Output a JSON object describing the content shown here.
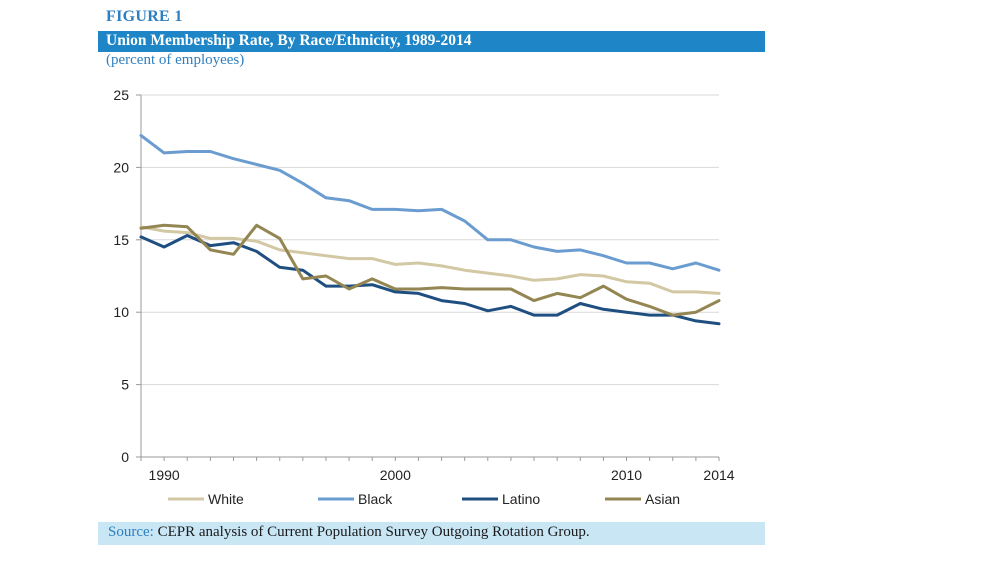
{
  "figure": {
    "label": "FIGURE 1",
    "title": "Union Membership Rate, By Race/Ethnicity, 1989-2014",
    "subtitle": "(percent of employees)",
    "source_prefix": "Source:",
    "source_text": " CEPR analysis of Current Population Survey Outgoing Rotation Group."
  },
  "chart_data": {
    "type": "line",
    "title": "Union Membership Rate, By Race/Ethnicity, 1989-2014",
    "xlabel": "",
    "ylabel": "",
    "ylim": [
      0,
      25
    ],
    "yticks": [
      0,
      5,
      10,
      15,
      20,
      25
    ],
    "xlim": [
      1989,
      2014
    ],
    "xticks": [
      1990,
      2000,
      2010,
      2014
    ],
    "grid": "horizontal",
    "legend": "bottom",
    "x": [
      1989,
      1990,
      1991,
      1992,
      1993,
      1994,
      1995,
      1996,
      1997,
      1998,
      1999,
      2000,
      2001,
      2002,
      2003,
      2004,
      2005,
      2006,
      2007,
      2008,
      2009,
      2010,
      2011,
      2012,
      2013,
      2014
    ],
    "series": [
      {
        "name": "White",
        "color": "#d3c8a4",
        "values": [
          15.9,
          15.6,
          15.5,
          15.1,
          15.1,
          14.9,
          14.3,
          14.1,
          13.9,
          13.7,
          13.7,
          13.3,
          13.4,
          13.2,
          12.9,
          12.7,
          12.5,
          12.2,
          12.3,
          12.6,
          12.5,
          12.1,
          12.0,
          11.4,
          11.4,
          11.3
        ]
      },
      {
        "name": "Black",
        "color": "#6b9ccf",
        "values": [
          22.2,
          21.0,
          21.1,
          21.1,
          20.6,
          20.2,
          19.8,
          18.9,
          17.9,
          17.7,
          17.1,
          17.1,
          17.0,
          17.1,
          16.3,
          15.0,
          15.0,
          14.5,
          14.2,
          14.3,
          13.9,
          13.4,
          13.4,
          13.0,
          13.4,
          12.9
        ]
      },
      {
        "name": "Latino",
        "color": "#1f4e80",
        "values": [
          15.2,
          14.5,
          15.3,
          14.6,
          14.8,
          14.2,
          13.1,
          12.9,
          11.8,
          11.8,
          11.9,
          11.4,
          11.3,
          10.8,
          10.6,
          10.1,
          10.4,
          9.8,
          9.8,
          10.6,
          10.2,
          10.0,
          9.8,
          9.8,
          9.4,
          9.2
        ]
      },
      {
        "name": "Asian",
        "color": "#938652",
        "values": [
          15.8,
          16.0,
          15.9,
          14.3,
          14.0,
          16.0,
          15.1,
          12.3,
          12.5,
          11.6,
          12.3,
          11.6,
          11.6,
          11.7,
          11.6,
          11.6,
          11.6,
          10.8,
          11.3,
          11.0,
          11.8,
          10.9,
          10.4,
          9.8,
          10.0,
          10.8
        ]
      }
    ]
  }
}
